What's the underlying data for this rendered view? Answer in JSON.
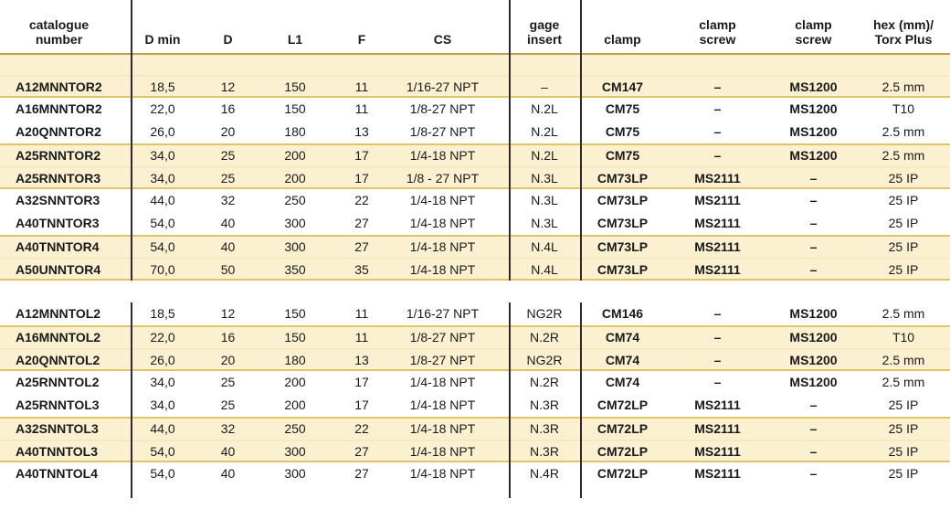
{
  "colors": {
    "band": "#fbf0cf",
    "band_edge": "#e2c566",
    "band_divider": "#f4e9c0",
    "header_rule": "#bfa14d",
    "rule": "#2b2b2b",
    "text": "#1a1a1a"
  },
  "table": {
    "columns": [
      {
        "key": "catalogue-number",
        "line1": "catalogue",
        "line2": "number"
      },
      {
        "key": "d-min",
        "line1": "",
        "line2": "D min"
      },
      {
        "key": "d",
        "line1": "",
        "line2": "D"
      },
      {
        "key": "l1",
        "line1": "",
        "line2": "L1"
      },
      {
        "key": "f",
        "line1": "",
        "line2": "F"
      },
      {
        "key": "cs",
        "line1": "",
        "line2": "CS"
      },
      {
        "key": "gage-insert",
        "line1": "gage",
        "line2": "insert"
      },
      {
        "key": "clamp",
        "line1": "",
        "line2": "clamp"
      },
      {
        "key": "clamp-screw-1",
        "line1": "clamp",
        "line2": "screw"
      },
      {
        "key": "clamp-screw-2",
        "line1": "clamp",
        "line2": "screw"
      },
      {
        "key": "hex-torx",
        "line1": "hex (mm)/",
        "line2": "Torx Plus"
      }
    ],
    "groups": [
      {
        "rows": [
          {
            "shaded": true,
            "cells": [
              "A12MNNTOR2",
              "18,5",
              "12",
              "150",
              "11",
              "1/16-27 NPT",
              "–",
              "CM147",
              "–",
              "MS1200",
              "2.5 mm"
            ]
          },
          {
            "shaded": false,
            "cells": [
              "A16MNNTOR2",
              "22,0",
              "16",
              "150",
              "11",
              "1/8-27 NPT",
              "N.2L",
              "CM75",
              "–",
              "MS1200",
              "T10"
            ]
          },
          {
            "shaded": false,
            "cells": [
              "A20QNNTOR2",
              "26,0",
              "20",
              "180",
              "13",
              "1/8-27 NPT",
              "N.2L",
              "CM75",
              "–",
              "MS1200",
              "2.5 mm"
            ]
          },
          {
            "shaded": true,
            "cells": [
              "A25RNNTOR2",
              "34,0",
              "25",
              "200",
              "17",
              "1/4-18 NPT",
              "N.2L",
              "CM75",
              "–",
              "MS1200",
              "2.5 mm"
            ]
          },
          {
            "shaded": true,
            "cells": [
              "A25RNNTOR3",
              "34,0",
              "25",
              "200",
              "17",
              "1/8 - 27 NPT",
              "N.3L",
              "CM73LP",
              "MS2111",
              "–",
              "25 IP"
            ]
          },
          {
            "shaded": false,
            "cells": [
              "A32SNNTOR3",
              "44,0",
              "32",
              "250",
              "22",
              "1/4-18 NPT",
              "N.3L",
              "CM73LP",
              "MS2111",
              "–",
              "25 IP"
            ]
          },
          {
            "shaded": false,
            "cells": [
              "A40TNNTOR3",
              "54,0",
              "40",
              "300",
              "27",
              "1/4-18 NPT",
              "N.3L",
              "CM73LP",
              "MS2111",
              "–",
              "25 IP"
            ]
          },
          {
            "shaded": true,
            "cells": [
              "A40TNNTOR4",
              "54,0",
              "40",
              "300",
              "27",
              "1/4-18 NPT",
              "N.4L",
              "CM73LP",
              "MS2111",
              "–",
              "25 IP"
            ]
          },
          {
            "shaded": true,
            "cells": [
              "A50UNNTOR4",
              "70,0",
              "50",
              "350",
              "35",
              "1/4-18 NPT",
              "N.4L",
              "CM73LP",
              "MS2111",
              "–",
              "25 IP"
            ]
          }
        ]
      },
      {
        "rows": [
          {
            "shaded": false,
            "cells": [
              "A12MNNTOL2",
              "18,5",
              "12",
              "150",
              "11",
              "1/16-27 NPT",
              "NG2R",
              "CM146",
              "–",
              "MS1200",
              "2.5 mm"
            ]
          },
          {
            "shaded": true,
            "cells": [
              "A16MNNTOL2",
              "22,0",
              "16",
              "150",
              "11",
              "1/8-27 NPT",
              "N.2R",
              "CM74",
              "–",
              "MS1200",
              "T10"
            ]
          },
          {
            "shaded": true,
            "cells": [
              "A20QNNTOL2",
              "26,0",
              "20",
              "180",
              "13",
              "1/8-27 NPT",
              "NG2R",
              "CM74",
              "–",
              "MS1200",
              "2.5 mm"
            ]
          },
          {
            "shaded": false,
            "cells": [
              "A25RNNTOL2",
              "34,0",
              "25",
              "200",
              "17",
              "1/4-18 NPT",
              "N.2R",
              "CM74",
              "–",
              "MS1200",
              "2.5 mm"
            ]
          },
          {
            "shaded": false,
            "cells": [
              "A25RNNTOL3",
              "34,0",
              "25",
              "200",
              "17",
              "1/4-18 NPT",
              "N.3R",
              "CM72LP",
              "MS2111",
              "–",
              "25 IP"
            ]
          },
          {
            "shaded": true,
            "cells": [
              "A32SNNTOL3",
              "44,0",
              "32",
              "250",
              "22",
              "1/4-18 NPT",
              "N.3R",
              "CM72LP",
              "MS2111",
              "–",
              "25 IP"
            ]
          },
          {
            "shaded": true,
            "cells": [
              "A40TNNTOL3",
              "54,0",
              "40",
              "300",
              "27",
              "1/4-18 NPT",
              "N.3R",
              "CM72LP",
              "MS2111",
              "–",
              "25 IP"
            ]
          },
          {
            "shaded": false,
            "cells": [
              "A40TNNTOL4",
              "54,0",
              "40",
              "300",
              "27",
              "1/4-18 NPT",
              "N.4R",
              "CM72LP",
              "MS2111",
              "–",
              "25 IP"
            ]
          }
        ]
      }
    ]
  }
}
